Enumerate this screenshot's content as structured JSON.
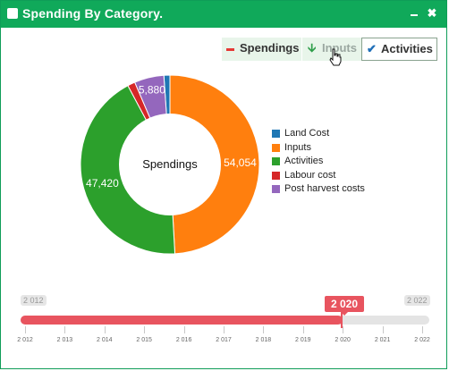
{
  "window": {
    "title": "Spending By Category."
  },
  "chips": {
    "spendings": "Spendings",
    "inputs": "Inputs",
    "activities": "Activities"
  },
  "chart_data": {
    "type": "pie",
    "center_label": "Spendings",
    "categories": [
      "Land Cost",
      "Inputs",
      "Activities",
      "Labour cost",
      "Post harvest costs"
    ],
    "values": [
      1200,
      54054,
      47420,
      1500,
      5880
    ],
    "value_labels": [
      "",
      "54,054",
      "47,420",
      "",
      "5,880"
    ],
    "colors": [
      "#1f77b4",
      "#ff7f0e",
      "#2ca02c",
      "#d62728",
      "#9467bd"
    ],
    "legend_placement": "right"
  },
  "slider": {
    "min_label": "2 012",
    "max_label": "2 022",
    "current_label": "2 020",
    "value_fraction": 0.8,
    "ticks": [
      "2 012",
      "2 013",
      "2 014",
      "2 015",
      "2 016",
      "2 017",
      "2 018",
      "2 019",
      "2 020",
      "2 021",
      "2 022"
    ]
  },
  "icons": {
    "spendings_chip": "minus-icon",
    "inputs_chip": "arrow-down-icon",
    "activities_chip": "check-icon",
    "cursor": "hand-pointer-icon"
  }
}
